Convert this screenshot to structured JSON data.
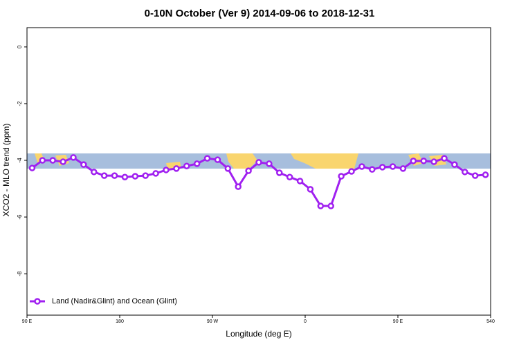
{
  "chart_data": {
    "type": "line",
    "title": "0-10N October (Ver 9)   2014-09-06 to 2018-12-31",
    "x_label": "Longitude (deg E)",
    "y_label": "XCO2 - MLO trend (ppm)",
    "xlim": [
      90,
      540
    ],
    "xticks": [
      {
        "value": 90,
        "label": "90 E"
      },
      180,
      {
        "value": 270,
        "label": "90 W"
      },
      {
        "value": 360,
        "label": "0"
      },
      {
        "value": 450,
        "label": "90 E"
      },
      540
    ],
    "ylim": [
      -9.46,
      0.68
    ],
    "yticks": [
      0,
      -2,
      -4,
      -6,
      -8
    ],
    "legend": "bottom-left",
    "series": [
      {
        "name": "Land (Nadir&Glint) and Ocean (Glint)",
        "color": "#a020f0",
        "x": [
          95,
          105,
          115,
          125,
          135,
          145,
          155,
          165,
          175,
          185,
          195,
          205,
          215,
          225,
          235,
          245,
          255,
          265,
          275,
          285,
          295,
          305,
          315,
          325,
          335,
          345,
          355,
          365,
          375,
          385,
          395,
          405,
          415,
          425,
          435,
          445,
          455,
          465,
          475,
          485,
          495,
          505,
          515,
          525,
          535
        ],
        "values": [
          -4.27,
          -4.0,
          -4.0,
          -4.05,
          -3.9,
          -4.15,
          -4.41,
          -4.54,
          -4.54,
          -4.59,
          -4.56,
          -4.54,
          -4.46,
          -4.34,
          -4.29,
          -4.2,
          -4.12,
          -3.93,
          -3.98,
          -4.29,
          -4.93,
          -4.37,
          -4.07,
          -4.12,
          -4.44,
          -4.59,
          -4.73,
          -5.02,
          -5.61,
          -5.61,
          -4.56,
          -4.39,
          -4.22,
          -4.32,
          -4.24,
          -4.22,
          -4.29,
          -4.02,
          -4.02,
          -4.05,
          -3.93,
          -4.15,
          -4.41,
          -4.54,
          -4.51
        ]
      }
    ]
  }
}
